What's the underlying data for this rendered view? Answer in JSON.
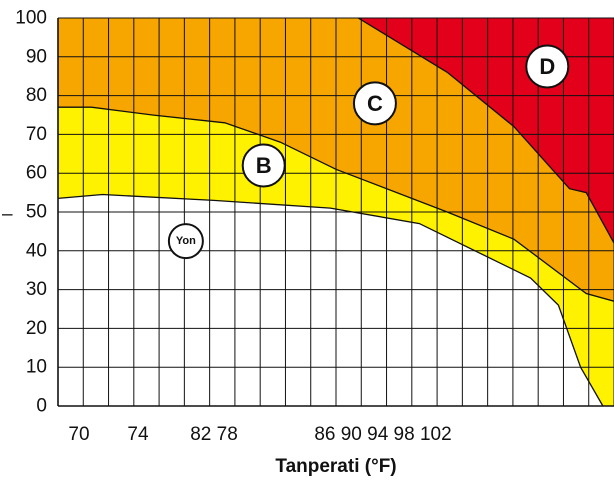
{
  "chart_data": {
    "type": "area",
    "xlabel": "Tanperati (°F)",
    "ylabel": "",
    "ylim": [
      0,
      100
    ],
    "y_ticks": [
      "0",
      "10",
      "20",
      "30",
      "40",
      "50",
      "60",
      "70",
      "80",
      "90",
      "100"
    ],
    "y_side_mark": "–",
    "x_tick_labels": [
      "70",
      "74",
      "82 78",
      "86 90 94 98 102"
    ],
    "grid": true,
    "colors": {
      "white_zone": "#ffffff",
      "yellow_zone": "#fff200",
      "orange_zone": "#f7a600",
      "red_zone": "#e3001b",
      "grid": "#111111",
      "boundary": "#111111"
    },
    "zones": [
      {
        "label": "Yon",
        "color": "#ffffff"
      },
      {
        "label": "B",
        "color": "#fff200"
      },
      {
        "label": "C",
        "color": "#f7a600"
      },
      {
        "label": "D",
        "color": "#e3001b"
      }
    ],
    "boundaries": [
      {
        "name": "white-yellow",
        "points": [
          [
            0,
            53.5
          ],
          [
            0.08,
            54.5
          ],
          [
            0.28,
            53
          ],
          [
            0.49,
            51
          ],
          [
            0.65,
            47
          ],
          [
            0.85,
            33
          ],
          [
            0.9,
            26
          ],
          [
            0.94,
            10
          ],
          [
            0.98,
            0
          ]
        ]
      },
      {
        "name": "yellow-orange",
        "points": [
          [
            0,
            77
          ],
          [
            0.06,
            77
          ],
          [
            0.17,
            75
          ],
          [
            0.3,
            73
          ],
          [
            0.4,
            68
          ],
          [
            0.5,
            61
          ],
          [
            0.7,
            50
          ],
          [
            0.82,
            43
          ],
          [
            0.95,
            29
          ],
          [
            1,
            27
          ]
        ]
      },
      {
        "name": "orange-red",
        "points": [
          [
            0.54,
            100
          ],
          [
            0.7,
            86
          ],
          [
            0.82,
            72
          ],
          [
            0.92,
            56
          ],
          [
            0.95,
            55
          ],
          [
            1,
            42
          ]
        ]
      }
    ]
  }
}
